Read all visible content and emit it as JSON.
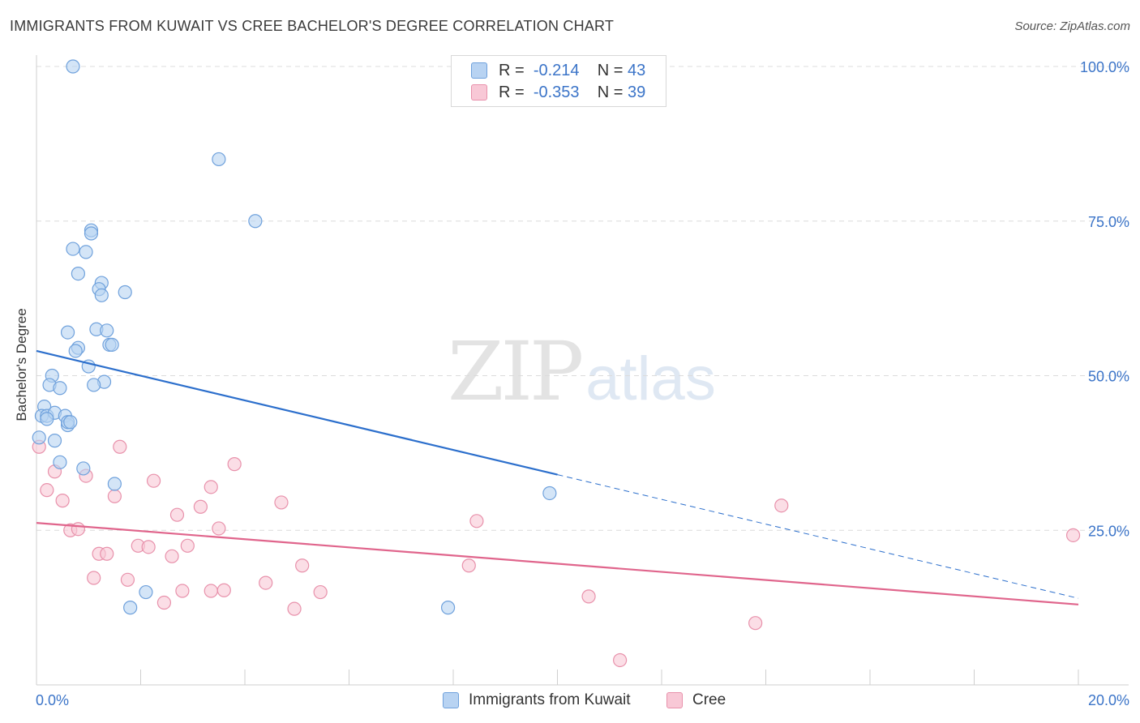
{
  "title": "IMMIGRANTS FROM KUWAIT VS CREE BACHELOR'S DEGREE CORRELATION CHART",
  "source": "Source: ZipAtlas.com",
  "watermark": {
    "part1": "ZIP",
    "part2": "atlas"
  },
  "colors": {
    "blue_fill": "#b8d3f2",
    "blue_stroke": "#6fa1dc",
    "blue_line": "#2c6fcc",
    "pink_fill": "#f8c8d6",
    "pink_stroke": "#e891ab",
    "pink_line": "#e0658c",
    "tick_label": "#3b74c8",
    "grid": "#dcdcdc"
  },
  "legend_stats": [
    {
      "r_label": "R =",
      "r_value": "-0.214",
      "n_label": "N =",
      "n_value": "43"
    },
    {
      "r_label": "R =",
      "r_value": "-0.353",
      "n_label": "N =",
      "n_value": "39"
    }
  ],
  "chart_data": {
    "type": "scatter",
    "title": "IMMIGRANTS FROM KUWAIT VS CREE BACHELOR'S DEGREE CORRELATION CHART",
    "xlabel": "",
    "ylabel": "Bachelor's Degree",
    "xlim": [
      0,
      20
    ],
    "ylim": [
      0,
      100
    ],
    "x_ticks": [
      0,
      2,
      4,
      6,
      8,
      10,
      12,
      14,
      16,
      18,
      20
    ],
    "x_tick_labels": [
      {
        "x": 0,
        "label": "0.0%"
      },
      {
        "x": 20,
        "label": "20.0%"
      }
    ],
    "y_gridlines": [
      25,
      50,
      75,
      100
    ],
    "y_tick_labels": [
      {
        "y": 100,
        "label": "100.0%"
      },
      {
        "y": 75,
        "label": "75.0%"
      },
      {
        "y": 50,
        "label": "50.0%"
      },
      {
        "y": 25,
        "label": "25.0%"
      }
    ],
    "grid": true,
    "legend_position": "bottom-center",
    "series": [
      {
        "name": "Immigrants from Kuwait",
        "color": "#b8d3f2",
        "r": -0.214,
        "n": 43,
        "trend": {
          "x0": 0,
          "y0": 54,
          "x1": 10,
          "y1": 34,
          "dash_to_x": 20,
          "dash_to_y": 14
        },
        "points": [
          {
            "x": 0.7,
            "y": 100
          },
          {
            "x": 3.5,
            "y": 85
          },
          {
            "x": 4.2,
            "y": 75
          },
          {
            "x": 1.05,
            "y": 73.5
          },
          {
            "x": 1.05,
            "y": 73
          },
          {
            "x": 0.7,
            "y": 70.5
          },
          {
            "x": 0.95,
            "y": 70
          },
          {
            "x": 0.8,
            "y": 66.5
          },
          {
            "x": 1.25,
            "y": 65
          },
          {
            "x": 1.2,
            "y": 64
          },
          {
            "x": 1.25,
            "y": 63
          },
          {
            "x": 1.7,
            "y": 63.5
          },
          {
            "x": 0.6,
            "y": 57
          },
          {
            "x": 1.15,
            "y": 57.5
          },
          {
            "x": 1.35,
            "y": 57.3
          },
          {
            "x": 1.4,
            "y": 55
          },
          {
            "x": 1.45,
            "y": 55
          },
          {
            "x": 0.8,
            "y": 54.5
          },
          {
            "x": 0.75,
            "y": 54
          },
          {
            "x": 1.0,
            "y": 51.5
          },
          {
            "x": 0.3,
            "y": 50
          },
          {
            "x": 0.25,
            "y": 48.5
          },
          {
            "x": 0.45,
            "y": 48
          },
          {
            "x": 1.3,
            "y": 49
          },
          {
            "x": 1.1,
            "y": 48.5
          },
          {
            "x": 0.15,
            "y": 45
          },
          {
            "x": 0.1,
            "y": 43.5
          },
          {
            "x": 0.2,
            "y": 43.5
          },
          {
            "x": 0.35,
            "y": 44
          },
          {
            "x": 0.55,
            "y": 43.5
          },
          {
            "x": 0.6,
            "y": 42
          },
          {
            "x": 0.6,
            "y": 42.5
          },
          {
            "x": 0.65,
            "y": 42.5
          },
          {
            "x": 0.05,
            "y": 40
          },
          {
            "x": 0.35,
            "y": 39.5
          },
          {
            "x": 0.45,
            "y": 36
          },
          {
            "x": 0.9,
            "y": 35
          },
          {
            "x": 1.5,
            "y": 32.5
          },
          {
            "x": 9.85,
            "y": 31
          },
          {
            "x": 2.1,
            "y": 15
          },
          {
            "x": 1.8,
            "y": 12.5
          },
          {
            "x": 7.9,
            "y": 12.5
          },
          {
            "x": 0.2,
            "y": 43
          }
        ]
      },
      {
        "name": "Cree",
        "color": "#f8c8d6",
        "r": -0.353,
        "n": 39,
        "trend": {
          "x0": 0,
          "y0": 26.2,
          "x1": 20,
          "y1": 13
        },
        "points": [
          {
            "x": 0.05,
            "y": 38.5
          },
          {
            "x": 1.6,
            "y": 38.5
          },
          {
            "x": 3.8,
            "y": 35.7
          },
          {
            "x": 0.35,
            "y": 34.5
          },
          {
            "x": 0.95,
            "y": 33.8
          },
          {
            "x": 2.25,
            "y": 33
          },
          {
            "x": 3.35,
            "y": 32
          },
          {
            "x": 0.2,
            "y": 31.5
          },
          {
            "x": 1.5,
            "y": 30.5
          },
          {
            "x": 0.5,
            "y": 29.8
          },
          {
            "x": 4.7,
            "y": 29.5
          },
          {
            "x": 14.3,
            "y": 29
          },
          {
            "x": 3.15,
            "y": 28.8
          },
          {
            "x": 2.7,
            "y": 27.5
          },
          {
            "x": 8.45,
            "y": 26.5
          },
          {
            "x": 0.65,
            "y": 25
          },
          {
            "x": 0.8,
            "y": 25.2
          },
          {
            "x": 3.5,
            "y": 25.3
          },
          {
            "x": 19.9,
            "y": 24.2
          },
          {
            "x": 1.95,
            "y": 22.5
          },
          {
            "x": 2.15,
            "y": 22.3
          },
          {
            "x": 2.9,
            "y": 22.5
          },
          {
            "x": 1.2,
            "y": 21.2
          },
          {
            "x": 1.35,
            "y": 21.2
          },
          {
            "x": 2.6,
            "y": 20.8
          },
          {
            "x": 5.1,
            "y": 19.3
          },
          {
            "x": 8.3,
            "y": 19.3
          },
          {
            "x": 1.1,
            "y": 17.3
          },
          {
            "x": 1.75,
            "y": 17
          },
          {
            "x": 4.4,
            "y": 16.5
          },
          {
            "x": 2.8,
            "y": 15.2
          },
          {
            "x": 3.35,
            "y": 15.2
          },
          {
            "x": 3.6,
            "y": 15.3
          },
          {
            "x": 5.45,
            "y": 15
          },
          {
            "x": 10.6,
            "y": 14.3
          },
          {
            "x": 2.45,
            "y": 13.3
          },
          {
            "x": 4.95,
            "y": 12.3
          },
          {
            "x": 13.8,
            "y": 10
          },
          {
            "x": 11.2,
            "y": 4
          }
        ]
      }
    ]
  }
}
